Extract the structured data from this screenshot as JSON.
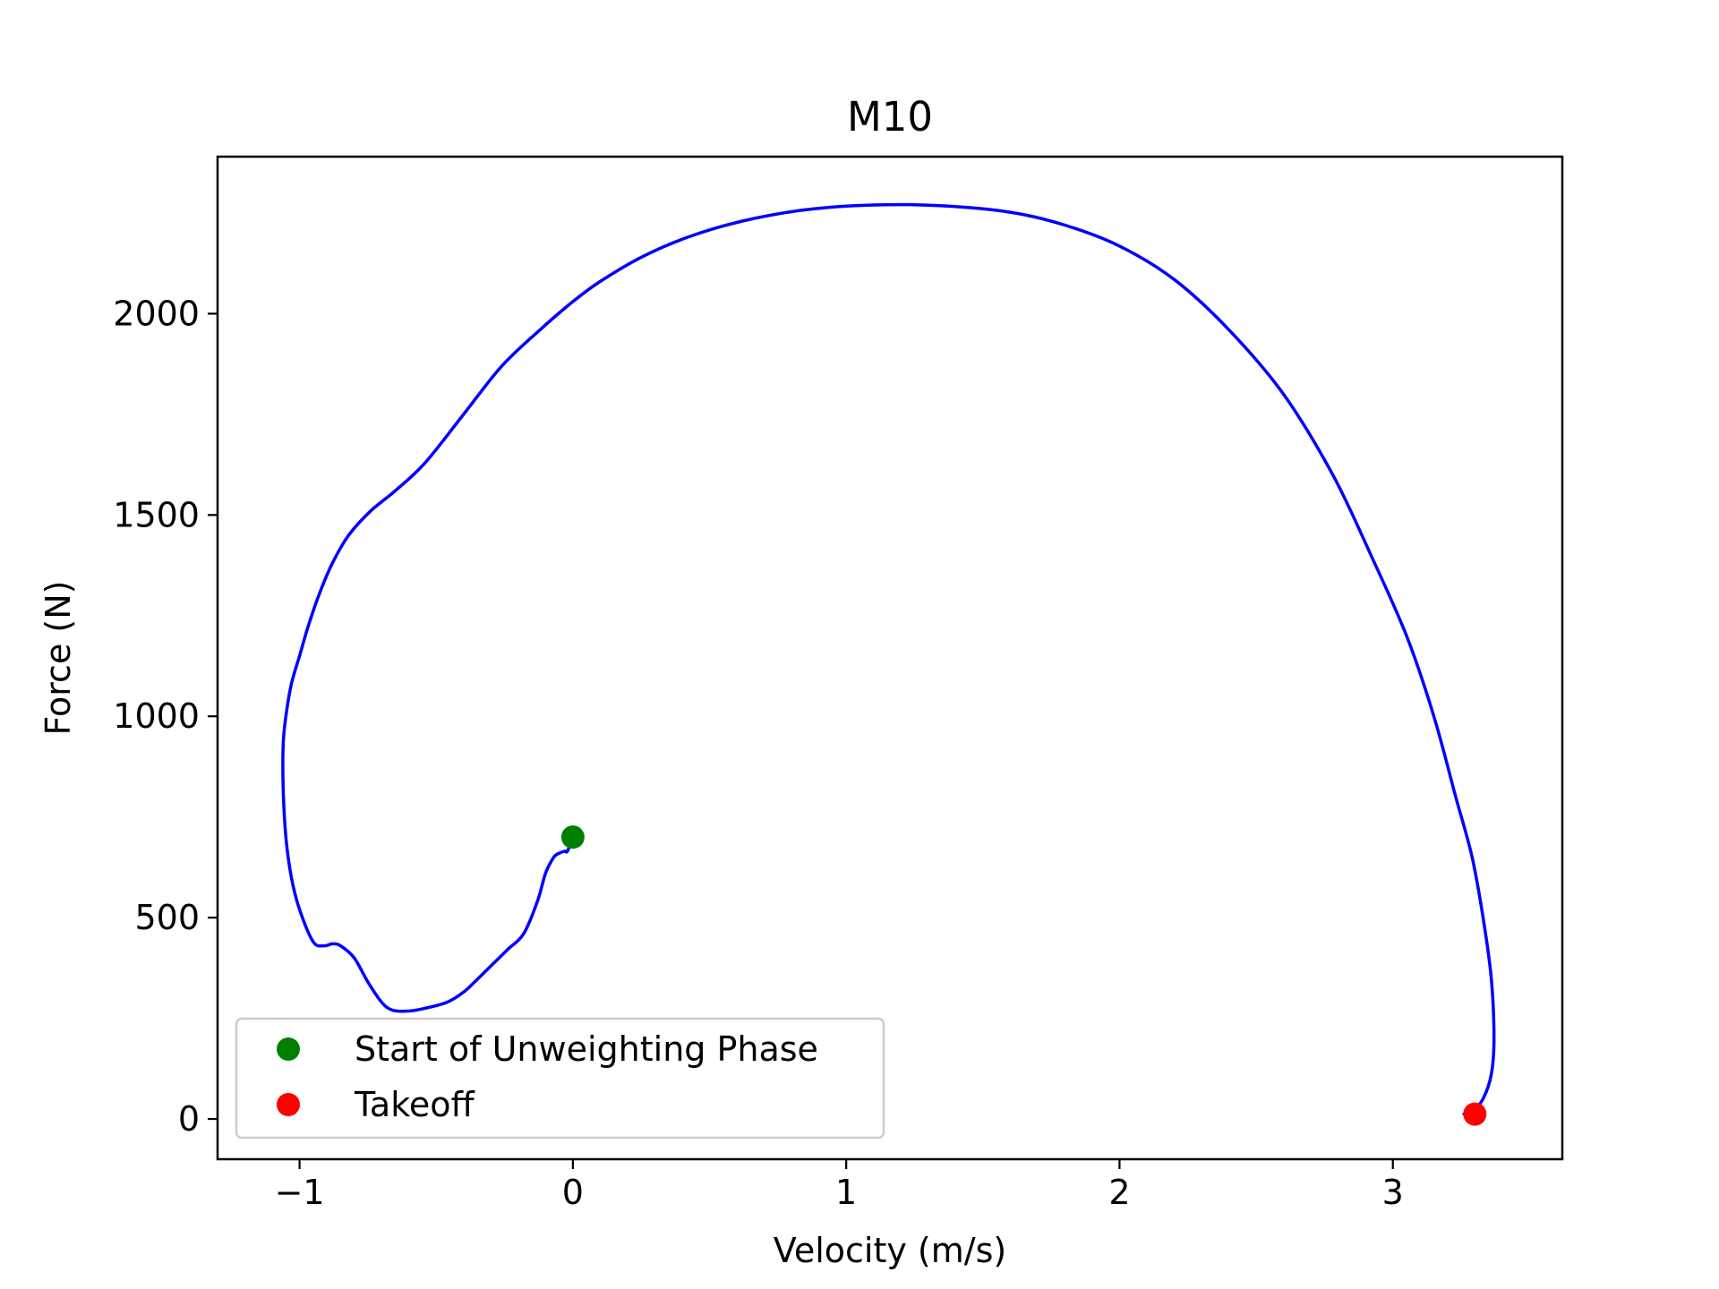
{
  "chart_data": {
    "type": "line",
    "title": "M10",
    "xlabel": "Velocity (m/s)",
    "ylabel": "Force (N)",
    "xlim": [
      -1.3,
      3.62
    ],
    "ylim": [
      -100,
      2390
    ],
    "xticks": [
      {
        "value": -1,
        "label": "−1"
      },
      {
        "value": 0,
        "label": "0"
      },
      {
        "value": 1,
        "label": "1"
      },
      {
        "value": 2,
        "label": "2"
      },
      {
        "value": 3,
        "label": "3"
      }
    ],
    "yticks": [
      {
        "value": 0,
        "label": "0"
      },
      {
        "value": 500,
        "label": "500"
      },
      {
        "value": 1000,
        "label": "1000"
      },
      {
        "value": 1500,
        "label": "1500"
      },
      {
        "value": 2000,
        "label": "2000"
      }
    ],
    "grid": false,
    "legend_position": "lower-left",
    "series": [
      {
        "color": "#0000ff",
        "x": [
          0.0,
          -0.02,
          -0.03,
          -0.05,
          -0.07,
          -0.1,
          -0.13,
          -0.18,
          -0.24,
          -0.3,
          -0.36,
          -0.4,
          -0.46,
          -0.54,
          -0.6,
          -0.66,
          -0.7,
          -0.75,
          -0.8,
          -0.85,
          -0.88,
          -0.91,
          -0.95,
          -1.0,
          -1.03,
          -1.05,
          -1.06,
          -1.06,
          -1.05,
          -1.03,
          -1.0,
          -0.97,
          -0.93,
          -0.88,
          -0.82,
          -0.74,
          -0.65,
          -0.54,
          -0.4,
          -0.26,
          -0.12,
          0.0,
          0.1,
          0.25,
          0.42,
          0.62,
          0.85,
          1.1,
          1.35,
          1.6,
          1.8,
          2.0,
          2.2,
          2.4,
          2.6,
          2.78,
          2.92,
          3.05,
          3.15,
          3.23,
          3.29,
          3.33,
          3.36,
          3.37,
          3.36,
          3.33,
          3.29,
          3.26
        ],
        "y": [
          700,
          665,
          665,
          660,
          650,
          610,
          540,
          460,
          420,
          380,
          340,
          315,
          290,
          275,
          268,
          270,
          290,
          340,
          400,
          430,
          435,
          430,
          440,
          520,
          600,
          700,
          820,
          930,
          1000,
          1080,
          1150,
          1220,
          1300,
          1380,
          1450,
          1510,
          1560,
          1630,
          1750,
          1870,
          1960,
          2030,
          2080,
          2140,
          2190,
          2230,
          2258,
          2270,
          2268,
          2252,
          2220,
          2168,
          2085,
          1960,
          1800,
          1600,
          1400,
          1200,
          1000,
          800,
          650,
          500,
          350,
          200,
          110,
          50,
          18,
          12
        ]
      }
    ],
    "markers": [
      {
        "name": "Start of Unweighting Phase",
        "x": 0.0,
        "y": 700,
        "color": "#008000"
      },
      {
        "name": "Takeoff",
        "x": 3.3,
        "y": 12,
        "color": "#ff0000"
      }
    ]
  }
}
